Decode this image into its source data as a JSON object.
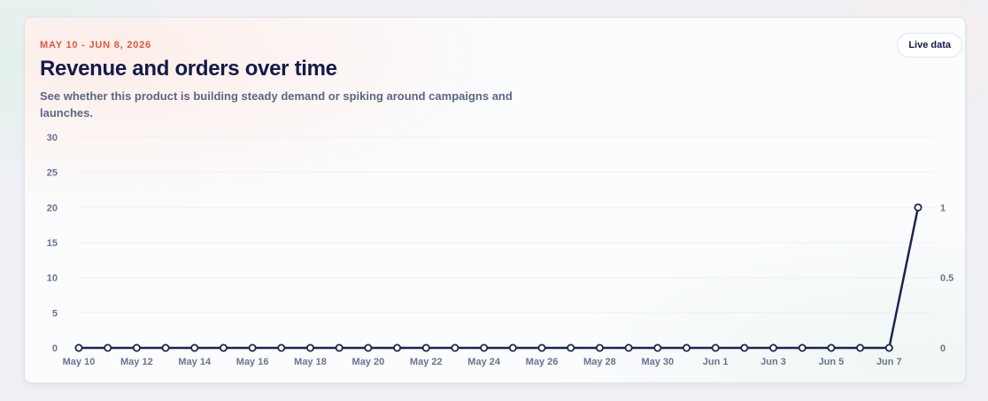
{
  "header": {
    "date_range": "MAY 10 - JUN 8, 2026",
    "title": "Revenue and orders over time",
    "subtitle": "See whether this product is building steady demand or spiking around campaigns and launches.",
    "live_button_label": "Live data"
  },
  "colors": {
    "accent": "#e0563b",
    "title": "#141a4a",
    "line": "#1c2452",
    "grid": "#eef0f5",
    "tick": "#6b7390"
  },
  "chart_data": {
    "type": "line",
    "title": "Revenue and orders over time",
    "x": [
      "May 10",
      "May 11",
      "May 12",
      "May 13",
      "May 14",
      "May 15",
      "May 16",
      "May 17",
      "May 18",
      "May 19",
      "May 20",
      "May 21",
      "May 22",
      "May 23",
      "May 24",
      "May 25",
      "May 26",
      "May 27",
      "May 28",
      "May 29",
      "May 30",
      "May 31",
      "Jun 1",
      "Jun 2",
      "Jun 3",
      "Jun 4",
      "Jun 5",
      "Jun 6",
      "Jun 7",
      "Jun 8"
    ],
    "x_tick_labels": [
      "May 10",
      "May 12",
      "May 14",
      "May 16",
      "May 18",
      "May 20",
      "May 22",
      "May 24",
      "May 26",
      "May 28",
      "May 30",
      "Jun 1",
      "Jun 3",
      "Jun 5",
      "Jun 7"
    ],
    "series": [
      {
        "axis": "left",
        "values": [
          0,
          0,
          0,
          0,
          0,
          0,
          0,
          0,
          0,
          0,
          0,
          0,
          0,
          0,
          0,
          0,
          0,
          0,
          0,
          0,
          0,
          0,
          0,
          0,
          0,
          0,
          0,
          0,
          0,
          20
        ]
      }
    ],
    "ylim": [
      0,
      30
    ],
    "y_ticks": [
      "0",
      "5",
      "10",
      "15",
      "20",
      "25",
      "30"
    ],
    "y2lim": [
      0,
      1.5
    ],
    "y2_ticks": [
      "0",
      "0.5",
      "1"
    ],
    "grid": true,
    "legend": "none"
  }
}
